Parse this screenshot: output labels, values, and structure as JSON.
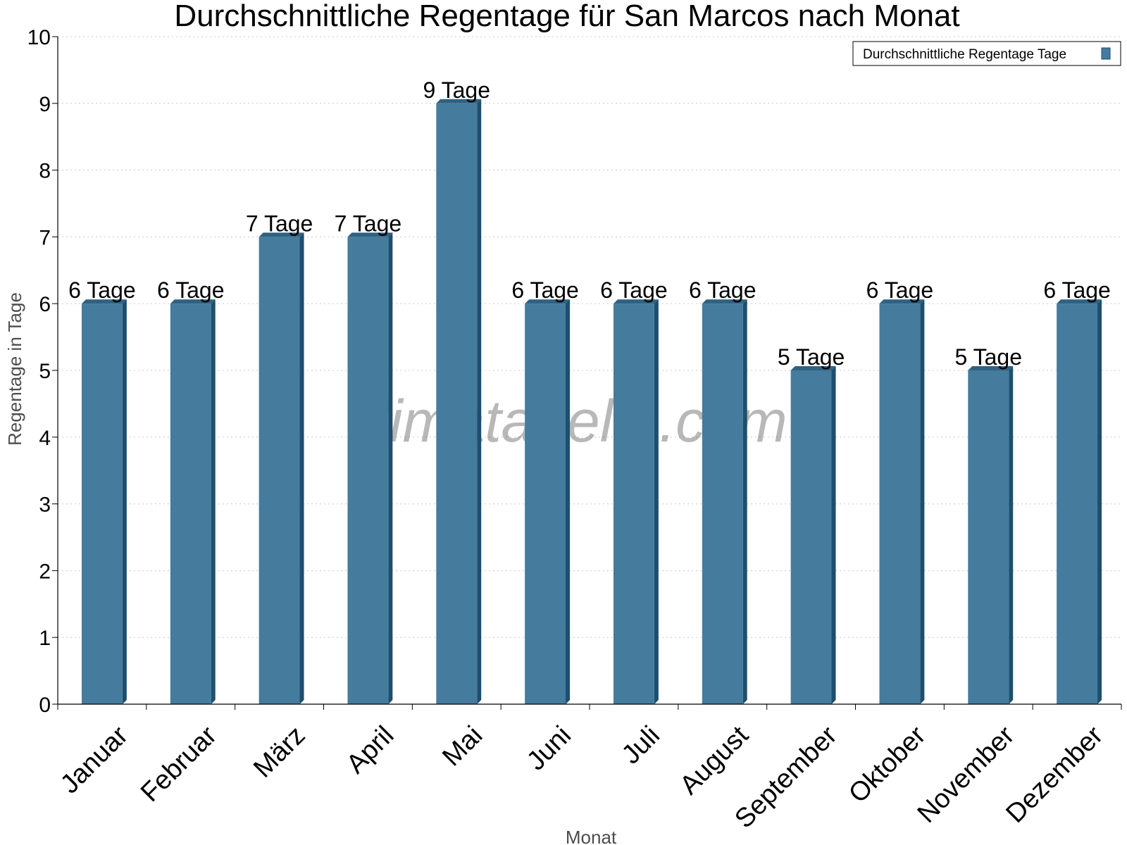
{
  "chart_data": {
    "type": "bar",
    "title": "Durchschnittliche Regentage für San Marcos nach Monat",
    "xlabel": "Monat",
    "ylabel": "Regentage in Tage",
    "categories": [
      "Januar",
      "Februar",
      "März",
      "April",
      "Mai",
      "Juni",
      "Juli",
      "August",
      "September",
      "Oktober",
      "November",
      "Dezember"
    ],
    "series": [
      {
        "name": "Durchschnittliche Regentage Tage",
        "values": [
          6,
          6,
          7,
          7,
          9,
          6,
          6,
          6,
          5,
          6,
          5,
          6
        ],
        "labels": [
          "6 Tage",
          "6 Tage",
          "7 Tage",
          "7 Tage",
          "9 Tage",
          "6 Tage",
          "6 Tage",
          "6 Tage",
          "5 Tage",
          "6 Tage",
          "5 Tage",
          "6 Tage"
        ]
      }
    ],
    "ylim": [
      0,
      10
    ],
    "yticks": [
      "0",
      "1",
      "2",
      "3",
      "4",
      "5",
      "6",
      "7",
      "8",
      "9",
      "10"
    ],
    "grid": true,
    "legend_position": "top-right",
    "watermark": "klimatabelle.com",
    "colors": {
      "bar": "#457b9d",
      "bar_top": "#2f6182",
      "bar_side": "#1d4e6e",
      "grid": "#c8c8c8",
      "axis": "#000000"
    }
  }
}
